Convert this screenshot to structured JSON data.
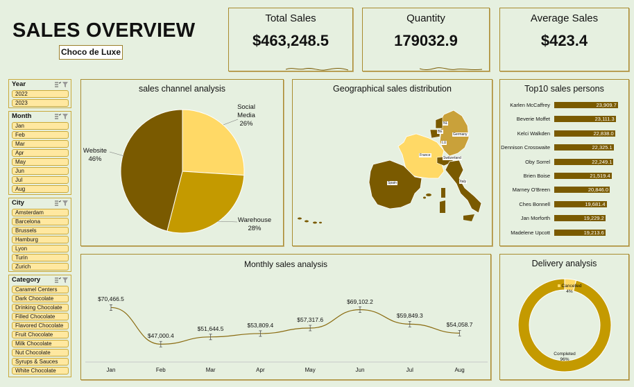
{
  "header": {
    "title": "SALES OVERVIEW",
    "brand": "Choco de Luxe"
  },
  "kpis": {
    "total_sales": {
      "label": "Total Sales",
      "value": "$463,248.5"
    },
    "quantity": {
      "label": "Quantity",
      "value": "179032.9"
    },
    "average_sales": {
      "label": "Average Sales",
      "value": "$423.4"
    }
  },
  "slicers": {
    "year": {
      "title": "Year",
      "items": [
        "2022",
        "2023"
      ]
    },
    "month": {
      "title": "Month",
      "items": [
        "Jan",
        "Feb",
        "Mar",
        "Apr",
        "May",
        "Jun",
        "Jul",
        "Aug"
      ]
    },
    "city": {
      "title": "City",
      "items": [
        "Amsterdam",
        "Barcelona",
        "Brussels",
        "Hamburg",
        "Lyon",
        "Turin",
        "Zurich"
      ]
    },
    "category": {
      "title": "Category",
      "items": [
        "Caramel Centers",
        "Dark Chocolate",
        "Drinking Chocolate",
        "Filled Chocolate",
        "Flavored Chocolate",
        "Fruit Chocolate",
        "Milk Chocolate",
        "Nut Chocolate",
        "Syrups & Sauces",
        "White Chocolate"
      ]
    }
  },
  "panels": {
    "sales_channel": "sales channel analysis",
    "geo": "Geographical sales distribution",
    "top10": "Top10 sales persons",
    "monthly": "Monthly sales analysis",
    "delivery": "Delivery analysis"
  },
  "map_labels": {
    "france": "France",
    "germany": "Germany",
    "spain": "Spain",
    "italy": "Italy",
    "switzerland": "Switzerland",
    "netherlands": "NL",
    "belgium": "BE",
    "lux": "LU"
  },
  "colors": {
    "dark": "#7a5a00",
    "gold": "#c49a00",
    "light": "#ffd966",
    "accent_border": "#a88b2e"
  },
  "chart_data": [
    {
      "type": "pie",
      "title": "sales channel analysis",
      "categories": [
        "Social Media",
        "Warehouse",
        "Website"
      ],
      "values": [
        26,
        28,
        46
      ],
      "labels": [
        "Social\nMedia\n26%",
        "Warehouse\n28%",
        "Website\n46%"
      ],
      "colors": [
        "#ffd966",
        "#c49a00",
        "#7a5a00"
      ]
    },
    {
      "type": "bar",
      "title": "Top10 sales persons",
      "categories": [
        "Karlen McCaffrey",
        "Beverie Moffet",
        "Kelci Walkden",
        "Dennison Crosswaite",
        "Oby Sorrel",
        "Brien Boise",
        "Marney O'Breen",
        "Ches Bonnell",
        "Jan Morforth",
        "Madelene Upcott"
      ],
      "values": [
        23909.7,
        23111.3,
        22838.0,
        22325.1,
        22249.1,
        21519.4,
        20846.0,
        19681.4,
        19229.2,
        19213.6
      ],
      "value_labels": [
        "23,909.7",
        "23,111.3",
        "22,838.0",
        "22,325.1",
        "22,249.1",
        "21,519.4",
        "20,846.0",
        "19,681.4",
        "19,229.2",
        "19,213.6"
      ]
    },
    {
      "type": "line",
      "title": "Monthly sales analysis",
      "categories": [
        "Jan",
        "Feb",
        "Mar",
        "Apr",
        "May",
        "Jun",
        "Jul",
        "Aug"
      ],
      "values": [
        70466.5,
        47000.4,
        51644.5,
        53809.4,
        57317.6,
        69102.2,
        59849.3,
        54058.7
      ],
      "value_labels": [
        "$70,466.5",
        "$47,000.4",
        "$51,644.5",
        "$53,809.4",
        "$57,317.6",
        "$69,102.2",
        "$59,849.3",
        "$54,058.7"
      ]
    },
    {
      "type": "pie",
      "title": "Delivery analysis",
      "categories": [
        "Cancelled",
        "Completed"
      ],
      "values": [
        4,
        96
      ],
      "labels": [
        "Cancelled\n4%",
        "Completed\n96%"
      ],
      "colors": [
        "#ffd966",
        "#c49a00"
      ]
    }
  ]
}
